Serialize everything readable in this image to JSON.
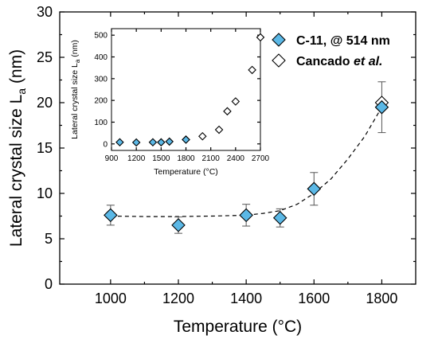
{
  "colors": {
    "primary_fill": "#5bb8e6",
    "secondary_fill": "#ffffff",
    "marker_stroke": "#000000",
    "fit_line": "#000000",
    "error_bar": "#555555"
  },
  "legend": {
    "items": [
      {
        "label": "C-11, @ 514 nm",
        "marker": "filled-diamond"
      },
      {
        "label_prefix": "Cancado ",
        "label_italic": "et al.",
        "marker": "open-diamond"
      }
    ],
    "placement": "top-right"
  },
  "chart_data": [
    {
      "type": "scatter",
      "title": "",
      "xlabel": "Temperature (°C)",
      "ylabel": "Lateral crystal size L",
      "ylabel_sub": "a",
      "ylabel_unit": " (nm)",
      "xlim": [
        850,
        1900
      ],
      "ylim": [
        0,
        30
      ],
      "xticks": [
        1000,
        1200,
        1400,
        1600,
        1800
      ],
      "yticks": [
        0,
        5,
        10,
        15,
        20,
        25,
        30
      ],
      "grid": false,
      "series": [
        {
          "name": "C-11, @ 514 nm",
          "marker": "filled-diamond",
          "x": [
            1000,
            1200,
            1400,
            1500,
            1600,
            1800
          ],
          "y": [
            7.6,
            6.5,
            7.6,
            7.3,
            10.5,
            19.5
          ],
          "err": [
            1.1,
            0.9,
            1.2,
            1.0,
            1.8,
            2.8
          ]
        },
        {
          "name": "Cancado et al.",
          "marker": "open-diamond",
          "x": [
            1800
          ],
          "y": [
            20.0
          ]
        }
      ],
      "fit_line": {
        "style": "dashed",
        "x": [
          1000,
          1100,
          1200,
          1300,
          1400,
          1450,
          1500,
          1550,
          1600,
          1650,
          1700,
          1750,
          1800
        ],
        "y": [
          7.5,
          7.45,
          7.45,
          7.5,
          7.6,
          7.8,
          8.1,
          8.8,
          10.0,
          11.6,
          13.8,
          16.3,
          19.5
        ]
      }
    },
    {
      "type": "scatter",
      "title": "",
      "placement": "inset-top-left",
      "xlabel": "Temperature (°C)",
      "ylabel": "Lateral crystal size L",
      "ylabel_sub": "a",
      "ylabel_unit": " (nm)",
      "xlim": [
        900,
        2700
      ],
      "ylim": [
        -30,
        530
      ],
      "xticks": [
        900,
        1200,
        1500,
        1800,
        2100,
        2400,
        2700
      ],
      "yticks": [
        0,
        100,
        200,
        300,
        400,
        500
      ],
      "grid": false,
      "series": [
        {
          "name": "C-11, @ 514 nm",
          "marker": "filled-diamond",
          "x": [
            1000,
            1200,
            1400,
            1500,
            1600,
            1800
          ],
          "y": [
            7.6,
            6.5,
            7.6,
            7.3,
            10.5,
            19.5
          ]
        },
        {
          "name": "Cancado et al.",
          "marker": "open-diamond",
          "x": [
            1800,
            2000,
            2200,
            2300,
            2400,
            2600,
            2700
          ],
          "y": [
            20,
            35,
            65,
            150,
            195,
            340,
            490
          ]
        }
      ]
    }
  ]
}
